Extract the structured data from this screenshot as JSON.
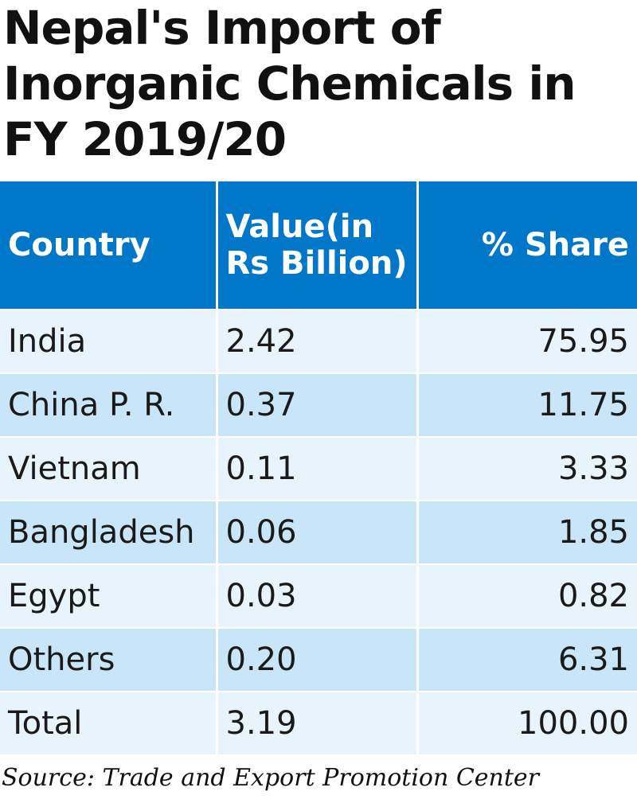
{
  "title_lines": [
    "Nepal's Import of",
    "Inorganic Chemicals in",
    "FY 2019/20"
  ],
  "colors": {
    "header_bg": "#0077c8",
    "row_light": "#e7f4fc",
    "row_dark": "#c9e6f8"
  },
  "chart_data": {
    "type": "table",
    "title": "Nepal's Import of Inorganic Chemicals in FY 2019/20",
    "columns": [
      "Country",
      "Value(in Rs Billion)",
      "% Share"
    ],
    "header_lines": [
      [
        "Country"
      ],
      [
        "Value(in",
        "Rs Billion)"
      ],
      [
        "% Share"
      ]
    ],
    "rows": [
      [
        "India",
        "2.42",
        "75.95"
      ],
      [
        "China P. R.",
        "0.37",
        "11.75"
      ],
      [
        "Vietnam",
        "0.11",
        "3.33"
      ],
      [
        "Bangladesh",
        "0.06",
        "1.85"
      ],
      [
        "Egypt",
        "0.03",
        "0.82"
      ],
      [
        "Others",
        "0.20",
        "6.31"
      ],
      [
        "Total",
        "3.19",
        "100.00"
      ]
    ]
  },
  "source": "Source: Trade and Export Promotion Center"
}
